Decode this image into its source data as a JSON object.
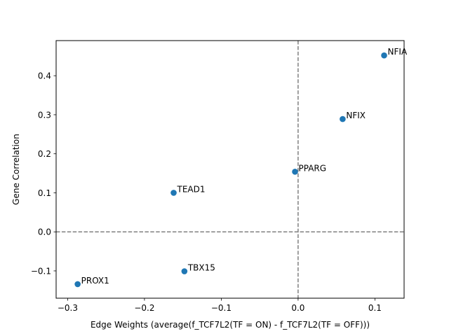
{
  "chart_data": {
    "type": "scatter",
    "title": "",
    "xlabel": "Edge Weights (average(f_TCF7L2(TF = ON) - f_TCF7L2(TF = OFF)))",
    "ylabel": "Gene Correlation",
    "xlim": [
      -0.315,
      0.138
    ],
    "ylim": [
      -0.17,
      0.49
    ],
    "xticks": [
      -0.3,
      -0.2,
      -0.1,
      0.0,
      0.1
    ],
    "xtick_labels": [
      "−0.3",
      "−0.2",
      "−0.1",
      "0.0",
      "0.1"
    ],
    "yticks": [
      -0.1,
      0.0,
      0.1,
      0.2,
      0.3,
      0.4
    ],
    "ytick_labels": [
      "−0.1",
      "0.0",
      "0.1",
      "0.2",
      "0.3",
      "0.4"
    ],
    "grid": false,
    "reference_lines": {
      "x": 0.0,
      "y": 0.0,
      "style": "dashed",
      "color": "#808080"
    },
    "point_color": "#1f77b4",
    "points": [
      {
        "label": "NFIA",
        "x": 0.112,
        "y": 0.452
      },
      {
        "label": "NFIX",
        "x": 0.058,
        "y": 0.289
      },
      {
        "label": "PPARG",
        "x": -0.004,
        "y": 0.154
      },
      {
        "label": "TEAD1",
        "x": -0.162,
        "y": 0.1
      },
      {
        "label": "TBX15",
        "x": -0.148,
        "y": -0.101
      },
      {
        "label": "PROX1",
        "x": -0.287,
        "y": -0.134
      }
    ]
  }
}
